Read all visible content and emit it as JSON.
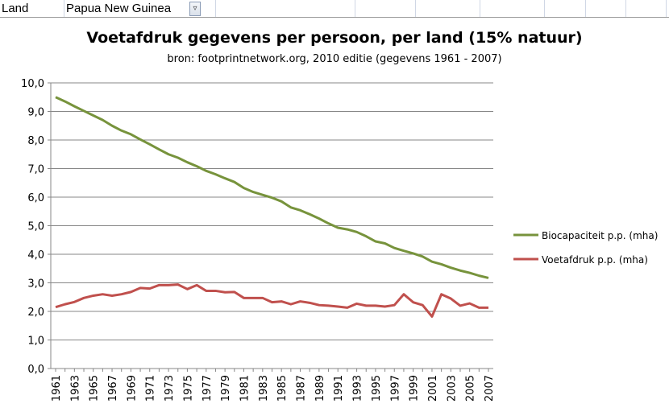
{
  "sheet": {
    "label": "Land",
    "value": "Papua New Guinea",
    "filter_icon": "filter-dropdown-icon"
  },
  "chart_data": {
    "type": "line",
    "title": "Voetafdruk gegevens per persoon,  per land (15% natuur)",
    "subtitle": "bron: footprintnetwork.org, 2010 editie (gegevens 1961 - 2007)",
    "xlabel": "",
    "ylabel": "",
    "ylim": [
      0,
      10
    ],
    "yticks": [
      "0,0",
      "1,0",
      "2,0",
      "3,0",
      "4,0",
      "5,0",
      "6,0",
      "7,0",
      "8,0",
      "9,0",
      "10,0"
    ],
    "grid": true,
    "legend": "right",
    "x": [
      1961,
      1962,
      1963,
      1964,
      1965,
      1966,
      1967,
      1968,
      1969,
      1970,
      1971,
      1972,
      1973,
      1974,
      1975,
      1976,
      1977,
      1978,
      1979,
      1980,
      1981,
      1982,
      1983,
      1984,
      1985,
      1986,
      1987,
      1988,
      1989,
      1990,
      1991,
      1992,
      1993,
      1994,
      1995,
      1996,
      1997,
      1998,
      1999,
      2000,
      2001,
      2002,
      2003,
      2004,
      2005,
      2006,
      2007
    ],
    "series": [
      {
        "name": "Biocapaciteit  p.p. (mha)",
        "color": "#77933c",
        "values": [
          9.5,
          9.35,
          9.18,
          9.02,
          8.86,
          8.7,
          8.5,
          8.33,
          8.2,
          8.02,
          7.85,
          7.67,
          7.5,
          7.38,
          7.22,
          7.08,
          6.92,
          6.8,
          6.66,
          6.53,
          6.32,
          6.18,
          6.08,
          5.98,
          5.85,
          5.64,
          5.54,
          5.4,
          5.25,
          5.08,
          4.93,
          4.87,
          4.78,
          4.63,
          4.45,
          4.38,
          4.22,
          4.12,
          4.03,
          3.92,
          3.74,
          3.65,
          3.53,
          3.43,
          3.35,
          3.25,
          3.17
        ]
      },
      {
        "name": "Voetafdruk p.p. (mha)",
        "color": "#c0504d",
        "values": [
          2.15,
          2.25,
          2.33,
          2.47,
          2.55,
          2.6,
          2.55,
          2.6,
          2.68,
          2.82,
          2.8,
          2.92,
          2.92,
          2.94,
          2.78,
          2.92,
          2.72,
          2.72,
          2.67,
          2.68,
          2.47,
          2.47,
          2.47,
          2.32,
          2.35,
          2.25,
          2.35,
          2.3,
          2.22,
          2.2,
          2.17,
          2.13,
          2.27,
          2.2,
          2.2,
          2.17,
          2.22,
          2.6,
          2.32,
          2.22,
          1.82,
          2.6,
          2.45,
          2.2,
          2.28,
          2.13,
          2.13
        ]
      }
    ]
  }
}
